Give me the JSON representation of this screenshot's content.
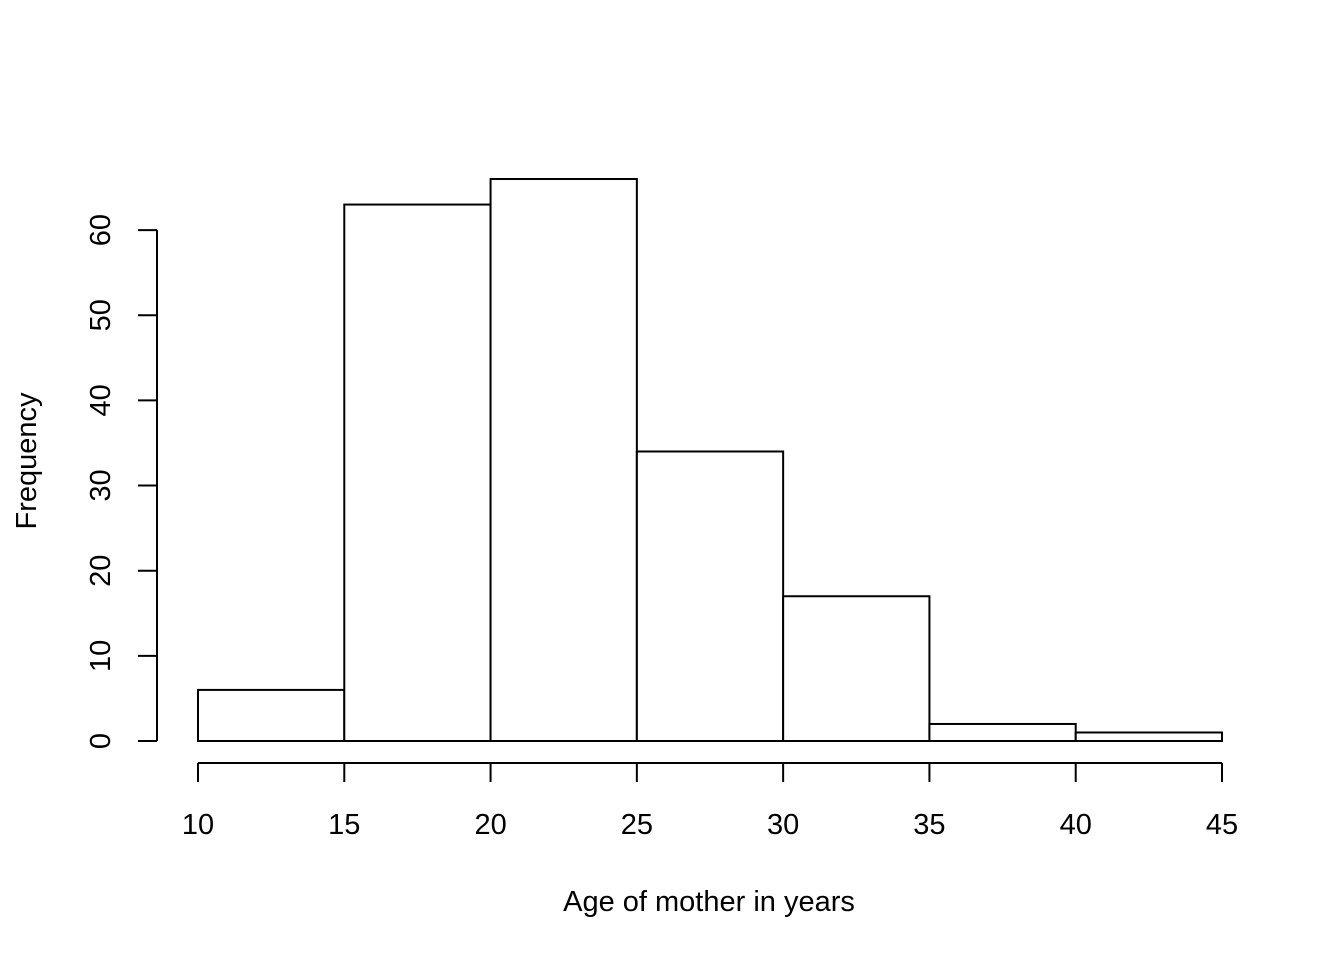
{
  "chart_data": {
    "type": "bar",
    "subtype": "histogram",
    "bins": [
      {
        "start": 10,
        "end": 15,
        "value": 6
      },
      {
        "start": 15,
        "end": 20,
        "value": 63
      },
      {
        "start": 20,
        "end": 25,
        "value": 66
      },
      {
        "start": 25,
        "end": 30,
        "value": 34
      },
      {
        "start": 30,
        "end": 35,
        "value": 17
      },
      {
        "start": 35,
        "end": 40,
        "value": 2
      },
      {
        "start": 40,
        "end": 45,
        "value": 1
      }
    ],
    "xlabel": "Age of mother in years",
    "ylabel": "Frequency",
    "xlim": [
      10,
      45
    ],
    "ylim": [
      0,
      66
    ],
    "x_ticks": [
      10,
      15,
      20,
      25,
      30,
      35,
      40,
      45
    ],
    "y_ticks": [
      0,
      10,
      20,
      30,
      40,
      50,
      60
    ],
    "grid": false,
    "legend": "none",
    "bar_fill": "#ffffff",
    "bar_stroke": "#000000"
  }
}
